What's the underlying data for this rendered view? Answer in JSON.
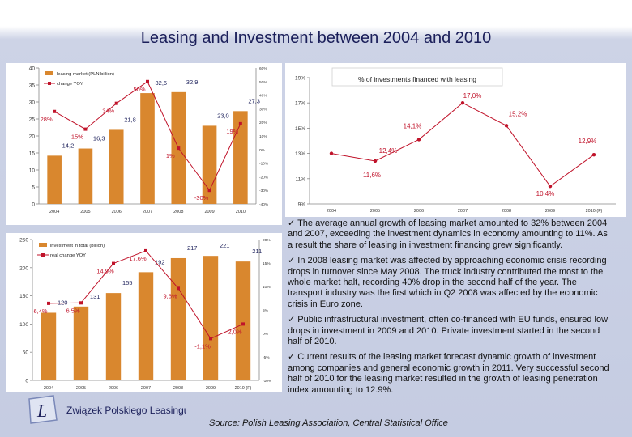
{
  "title": "Leasing and Investment between 2004 and 2010",
  "colors": {
    "bar": "#d9872e",
    "line": "#c0132a",
    "navy": "#1b1f5a",
    "blue": "#2a4aa0"
  },
  "chart_data": [
    {
      "type": "bar",
      "legend": [
        "leasing market (PLN billion)",
        "change YOY"
      ],
      "categories": [
        "2004",
        "2005",
        "2006",
        "2007",
        "2008",
        "2009",
        "2010"
      ],
      "series": [
        {
          "name": "leasing market (PLN billion)",
          "values": [
            14.2,
            16.3,
            21.8,
            32.6,
            32.9,
            23.0,
            27.3
          ],
          "labels": [
            "14,2",
            "16,3",
            "21,8",
            "32,6",
            "32,9",
            "23,0",
            "27,3"
          ]
        },
        {
          "name": "change YOY",
          "values": [
            28,
            15,
            34,
            50,
            1,
            -30,
            19
          ],
          "labels": [
            "28%",
            "15%",
            "34%",
            "50%",
            "1%",
            "-30%",
            "19%"
          ]
        }
      ],
      "left_ticks": [
        "0",
        "5",
        "10",
        "15",
        "20",
        "25",
        "30",
        "35",
        "40"
      ],
      "right_ticks": [
        "60%",
        "50%",
        "40%",
        "30%",
        "20%",
        "10%",
        "0%",
        "-10%",
        "-20%",
        "-30%",
        "-40%"
      ],
      "ylim": [
        0,
        40
      ],
      "y2lim": [
        -40,
        60
      ]
    },
    {
      "type": "line",
      "title": "% of investments financed with leasing",
      "categories": [
        "2004",
        "2005",
        "2006",
        "2007",
        "2008",
        "2009",
        "2010 (F)"
      ],
      "values": [
        13.0,
        12.4,
        14.1,
        17.0,
        15.2,
        10.4,
        12.9
      ],
      "labels": [
        "",
        "12,4%",
        "14,1%",
        "17,0%",
        "15,2%",
        "10,4%",
        "12,9%"
      ],
      "extra_label": "11,6%",
      "y_ticks": [
        "19%",
        "17%",
        "15%",
        "13%",
        "11%",
        "9%"
      ],
      "ylim": [
        9,
        19
      ]
    },
    {
      "type": "bar",
      "legend": [
        "investment in total (billion)",
        "real change YOY"
      ],
      "categories": [
        "2004",
        "2005",
        "2006",
        "2007",
        "2008",
        "2009",
        "2010 (F)"
      ],
      "series": [
        {
          "name": "investment in total (billion)",
          "values": [
            120,
            131,
            155,
            192,
            217,
            221,
            211
          ],
          "labels": [
            "120",
            "131",
            "155",
            "192",
            "217",
            "221",
            "211"
          ]
        },
        {
          "name": "real change YOY",
          "values": [
            6.4,
            6.5,
            14.9,
            17.6,
            9.6,
            -1.1,
            2.0
          ],
          "labels": [
            "6,4%",
            "6,5%",
            "14,9%",
            "17,6%",
            "9,6%",
            "-1,1%",
            "2,0%"
          ]
        }
      ],
      "left_ticks": [
        "0",
        "50",
        "100",
        "150",
        "200",
        "250"
      ],
      "right_ticks": [
        "20%",
        "15%",
        "10%",
        "5%",
        "0%",
        "-5%",
        "-10%"
      ],
      "ylim": [
        0,
        250
      ],
      "y2lim": [
        -10,
        20
      ]
    }
  ],
  "bullets": [
    "The average annual growth of leasing market amounted to 32% between 2004 and 2007, exceeding the investment dynamics in economy amounting to 11%. As a result the share of leasing in investment financing grew significantly.",
    "In 2008 leasing market was affected by approaching economic crisis recording drops in turnover since May 2008. The truck industry contributed the most to the whole market halt, recording 40% drop in the second half of the year. The transport industry was the first which in Q2 2008 was affected by the economic crisis in Euro zone.",
    "Public infrastructural investment, often co-financed with EU funds, ensured low drops in investment in 2009 and 2010. Private investment started in the second half of 2010.",
    "Current results of the leasing market forecast dynamic growth of investment among companies and general economic growth in 2011. Very successful second half of 2010 for the leasing market resulted in the growth of leasing penetration index amounting to 12.9%."
  ],
  "bullet_mark": "✓",
  "source": "Source: Polish Leasing Association, Central Statistical Office",
  "logo_text": "Związek Polskiego Leasingu",
  "logo_letter": "L"
}
